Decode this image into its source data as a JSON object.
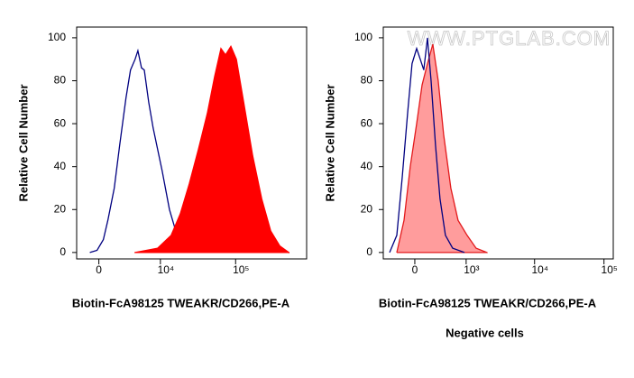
{
  "chart_data": [
    {
      "type": "area",
      "xscale": "biexponential",
      "xlabel": "Biotin-FcA98125 TWEAKR/CD266,PE-A",
      "ylabel": "Relative Cell Number",
      "xlim": [
        -2300,
        860000
      ],
      "ylim": [
        -3,
        105
      ],
      "xticks": [
        0,
        {
          "value": 10000,
          "label": "10⁴"
        },
        {
          "value": 100000,
          "label": "10⁵"
        }
      ],
      "yticks": [
        0,
        20,
        40,
        60,
        80,
        100
      ],
      "series": [
        {
          "color": "#000080",
          "filled": false,
          "x": [
            -880,
            -175,
            436,
            881,
            1533,
            2137,
            2915,
            3534,
            4226,
            4690,
            5347,
            5883,
            6842,
            7925,
            9147,
            10573,
            13303,
            16161,
            21336,
            28162,
            37084
          ],
          "values": [
            0,
            1,
            6,
            15,
            30,
            50,
            72,
            85,
            90,
            94,
            86,
            85,
            70,
            58,
            48,
            38,
            20,
            10,
            3,
            1,
            0
          ]
        },
        {
          "color": "#ff0000",
          "fill": "#ff0000",
          "filled": true,
          "x": [
            4226,
            9147,
            14034,
            18574,
            24511,
            32290,
            42513,
            52927,
            64135,
            73660,
            86678,
            102235,
            127635,
            167640,
            220662,
            290195,
            381635,
            501650
          ],
          "values": [
            0,
            2,
            8,
            18,
            32,
            48,
            65,
            82,
            95,
            92,
            96,
            90,
            70,
            45,
            25,
            10,
            3,
            0
          ]
        }
      ]
    },
    {
      "type": "area",
      "xscale": "biexponential",
      "xlabel": "Biotin-FcA98125 TWEAKR/CD266,PE-A",
      "ylabel": "Relative Cell Number",
      "subtitle": "Negative cells",
      "watermark": "WWW.PTGLAB.COM",
      "xlim": [
        -470,
        136000
      ],
      "ylim": [
        -3,
        105
      ],
      "xticks": [
        0,
        {
          "value": 1000,
          "label": "10³"
        },
        {
          "value": 10000,
          "label": "10⁴"
        },
        {
          "value": 100000,
          "label": "10⁵"
        }
      ],
      "yticks": [
        0,
        20,
        40,
        60,
        80,
        100
      ],
      "series": [
        {
          "color": "#e31a1c",
          "fill": "#ff9c9c",
          "filled": true,
          "x": [
            -239,
            -138,
            -57,
            23,
            91,
            163,
            239,
            323,
            417,
            566,
            746,
            1033,
            1414,
            2044
          ],
          "values": [
            0,
            15,
            40,
            60,
            78,
            88,
            97,
            80,
            55,
            30,
            15,
            8,
            2,
            0
          ]
        },
        {
          "color": "#000080",
          "filled": false,
          "x": [
            -353,
            -239,
            -162,
            -91,
            -34,
            23,
            68,
            114,
            163,
            213,
            280,
            353,
            452,
            607,
            942
          ],
          "values": [
            0,
            8,
            35,
            65,
            88,
            95,
            90,
            85,
            100,
            80,
            50,
            25,
            8,
            2,
            0
          ]
        }
      ]
    }
  ]
}
